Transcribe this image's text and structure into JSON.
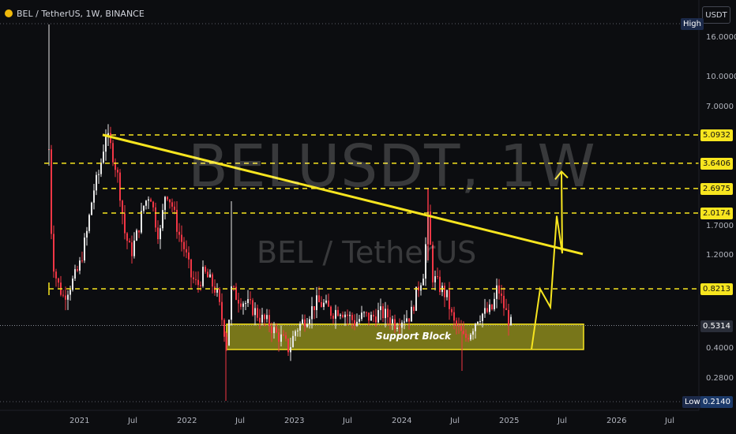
{
  "header": {
    "symbol_line": "BEL / TetherUS, 1W, BINANCE"
  },
  "currency_button": "USDT",
  "watermark": {
    "symbol": "BELUSDT, 1W",
    "pair": "BEL / TetherUS"
  },
  "chart_data": {
    "type": "candlestick",
    "title": "BELUSDT, 1W",
    "y_scale": "log",
    "price_ticks": [
      "16.0000",
      "10.0000",
      "7.0000",
      "1.7000",
      "1.2000",
      "0.4000",
      "0.2800"
    ],
    "x_ticks": [
      "2021",
      "Jul",
      "2022",
      "Jul",
      "2023",
      "Jul",
      "2024",
      "Jul",
      "2025",
      "Jul",
      "2026",
      "Jul"
    ],
    "levels": [
      {
        "label": "5.0932",
        "value": 5.0932
      },
      {
        "label": "3.6406",
        "value": 3.6406
      },
      {
        "label": "2.6975",
        "value": 2.6975
      },
      {
        "label": "2.0174",
        "value": 2.0174
      },
      {
        "label": "0.8213",
        "value": 0.8213
      }
    ],
    "current_price": "0.5314",
    "high": {
      "label": "High",
      "value": ""
    },
    "low": {
      "label": "Low",
      "value": "0.2140"
    },
    "support_block": {
      "label": "Support Block",
      "top": 0.54,
      "bottom": 0.4
    },
    "trendline": {
      "from": {
        "date": "2021-04",
        "price": 5.1
      },
      "to": {
        "date": "2025-11",
        "price": 1.24
      }
    },
    "projection": [
      [
        0.4,
        "2025-03"
      ],
      [
        0.82,
        "2025-04"
      ],
      [
        0.66,
        "2025-05"
      ],
      [
        1.95,
        "2025-06"
      ],
      [
        1.25,
        "2025-07"
      ],
      [
        3.3,
        "2025-08"
      ]
    ],
    "colors": {
      "up": "#e8e8e8",
      "down": "#f23645",
      "level": "#f7e51f",
      "support_fill": "#8c8a1c",
      "grid": "#6a6d78"
    }
  }
}
